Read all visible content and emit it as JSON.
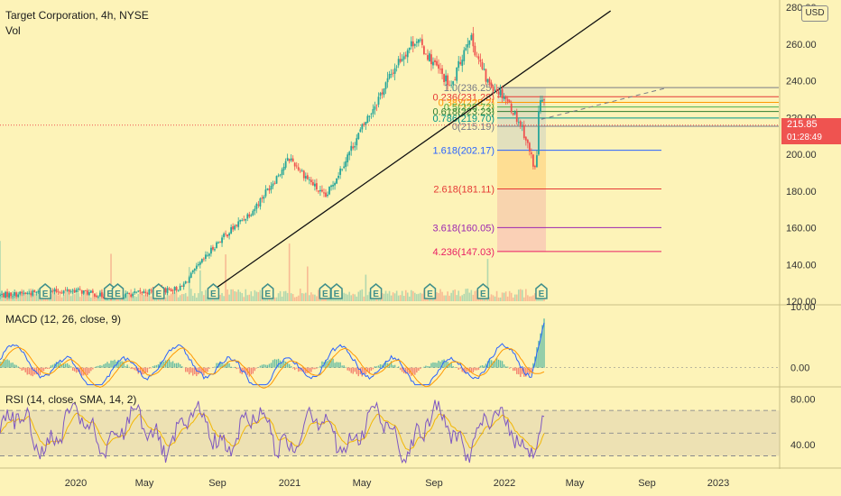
{
  "header": {
    "title": "Target Corporation, 4h, NYSE",
    "vol_label": "Vol",
    "currency": "USD"
  },
  "current_price": {
    "value": 215.85,
    "label": "215.85",
    "countdown": "01:28:49"
  },
  "colors": {
    "background": "#fdf3b8",
    "up_candle": "#26a69a",
    "down_candle": "#ef5350",
    "macd_line": "#2962ff",
    "signal_line": "#ff9800",
    "rsi_line": "#7e57c2",
    "rsi_ma": "#f2b705",
    "earnings_badge": "#3f8f8a"
  },
  "x_axis": {
    "ticks": [
      "2020",
      "May",
      "Sep",
      "2021",
      "May",
      "Sep",
      "2022",
      "May",
      "Sep",
      "2023"
    ]
  },
  "chart_data": [
    {
      "type": "line",
      "panel": "price",
      "series_kind": "candlestick",
      "ylim": [
        120,
        280
      ],
      "y_ticks": [
        "280.00",
        "260.00",
        "240.00",
        "220.00",
        "200.00",
        "180.00",
        "160.00",
        "140.00",
        "120.00"
      ],
      "x_dates": [
        "2019-11",
        "2020-01",
        "2020-03",
        "2020-05",
        "2020-07",
        "2020-09",
        "2020-11",
        "2021-01",
        "2021-03",
        "2021-05",
        "2021-07",
        "2021-08",
        "2021-10",
        "2021-11",
        "2021-12",
        "2022-01",
        "2022-02",
        "2022-02-24",
        "2022-03"
      ],
      "close": [
        123,
        126,
        122,
        125,
        127,
        152,
        170,
        198,
        176,
        214,
        250,
        263,
        236,
        265,
        240,
        232,
        214,
        190,
        228
      ],
      "trendline": {
        "from": [
          "2020-08-20",
          125
        ],
        "to": [
          "2022-07-01",
          278
        ]
      },
      "fibonacci": [
        {
          "label": "1.0(236.25)",
          "level": 236.25,
          "color": "#787b86"
        },
        {
          "label": "0.236(231.28)",
          "level": 231.28,
          "color": "#e53935"
        },
        {
          "label": "0.382(228.2)",
          "level": 228.2,
          "color": "#ff9800"
        },
        {
          "label": "0.5(225.72)",
          "level": 225.72,
          "color": "#4caf50"
        },
        {
          "label": "0.618(223.23)",
          "level": 223.23,
          "color": "#2e7d32"
        },
        {
          "label": "0.786(219.70)",
          "level": 219.7,
          "color": "#009688"
        },
        {
          "label": "0(215.19)",
          "level": 215.19,
          "color": "#787b86"
        },
        {
          "label": "1.618(202.17)",
          "level": 202.17,
          "color": "#2962ff"
        },
        {
          "label": "2.618(181.11)",
          "level": 181.11,
          "color": "#e53935"
        },
        {
          "label": "3.618(160.05)",
          "level": 160.05,
          "color": "#9c27b0"
        },
        {
          "label": "4.236(147.03)",
          "level": 147.03,
          "color": "#e91e63"
        }
      ],
      "earnings_markers": [
        "E",
        "E",
        "E",
        "E",
        "E",
        "E",
        "E",
        "E",
        "E",
        "E",
        "E",
        "E"
      ]
    },
    {
      "type": "line",
      "panel": "macd",
      "title": "MACD (12, 26, close, 9)",
      "ylim": [
        -3,
        10
      ],
      "y_ticks": [
        "10.00",
        "0.00"
      ]
    },
    {
      "type": "line",
      "panel": "rsi",
      "title": "RSI (14, close, SMA, 14, 2)",
      "ylim": [
        20,
        90
      ],
      "y_ticks": [
        "80.00",
        "40.00"
      ],
      "bands": [
        70,
        50,
        30
      ]
    }
  ]
}
